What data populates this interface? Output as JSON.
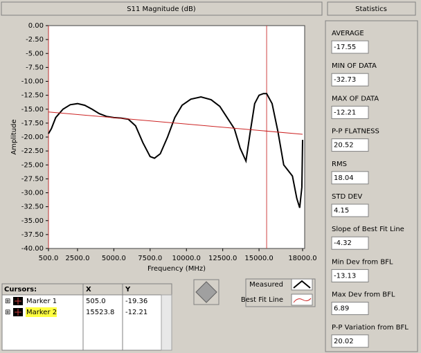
{
  "chart_data": {
    "type": "line",
    "title": "S11 Magnitude (dB)",
    "x_label": "Frequency (MHz)",
    "y_label": "Amplitude",
    "xlim": [
      500,
      18000
    ],
    "ylim": [
      -40,
      0
    ],
    "grid": false,
    "xticks": [
      {
        "value": 500,
        "label": "500.0"
      },
      {
        "value": 2500,
        "label": "2500.0"
      },
      {
        "value": 5000,
        "label": "5000.0"
      },
      {
        "value": 7500,
        "label": "7500.0"
      },
      {
        "value": 10000,
        "label": "10000.0"
      },
      {
        "value": 12500,
        "label": "12500.0"
      },
      {
        "value": 15000,
        "label": "15000.0"
      },
      {
        "value": 18000,
        "label": "18000.0"
      }
    ],
    "yticks": [
      {
        "value": 0,
        "label": "0.00"
      },
      {
        "value": -2.5,
        "label": "-2.50"
      },
      {
        "value": -5,
        "label": "-5.00"
      },
      {
        "value": -7.5,
        "label": "-7.50"
      },
      {
        "value": -10,
        "label": "-10.00"
      },
      {
        "value": -12.5,
        "label": "-12.50"
      },
      {
        "value": -15,
        "label": "-15.00"
      },
      {
        "value": -17.5,
        "label": "-17.50"
      },
      {
        "value": -20,
        "label": "-20.00"
      },
      {
        "value": -22.5,
        "label": "-22.50"
      },
      {
        "value": -25,
        "label": "-25.00"
      },
      {
        "value": -27.5,
        "label": "-27.50"
      },
      {
        "value": -30,
        "label": "-30.00"
      },
      {
        "value": -32.5,
        "label": "-32.50"
      },
      {
        "value": -35,
        "label": "-35.00"
      },
      {
        "value": -37.5,
        "label": "-37.50"
      },
      {
        "value": -40,
        "label": "-40.00"
      }
    ],
    "series": [
      {
        "name": "Measured",
        "color": "#000000",
        "x": [
          500,
          700,
          1000,
          1500,
          2000,
          2500,
          3000,
          3500,
          4000,
          4500,
          5000,
          5500,
          6000,
          6500,
          7000,
          7500,
          7800,
          8200,
          8700,
          9200,
          9700,
          10300,
          11000,
          11700,
          12300,
          12800,
          13300,
          13700,
          14100,
          14400,
          14700,
          15000,
          15300,
          15524,
          15900,
          16300,
          16700,
          17000,
          17300,
          17600,
          17800,
          17950,
          18000
        ],
        "values": [
          -19.4,
          -18.5,
          -16.5,
          -15,
          -14.2,
          -14,
          -14.3,
          -15,
          -15.8,
          -16.3,
          -16.5,
          -16.6,
          -16.8,
          -18,
          -21,
          -23.5,
          -23.8,
          -23,
          -20,
          -16.5,
          -14.3,
          -13.2,
          -12.8,
          -13.3,
          -14.5,
          -16.5,
          -18.5,
          -22,
          -24.3,
          -19,
          -14,
          -12.5,
          -12.2,
          -12.21,
          -14,
          -19,
          -25,
          -26,
          -27,
          -31,
          -32.7,
          -29,
          -20.5
        ]
      },
      {
        "name": "Best Fit Line",
        "color": "#cc2222",
        "x": [
          500,
          18000
        ],
        "values": [
          -15.5,
          -19.5
        ]
      }
    ]
  },
  "cursors": {
    "title": "Cursors:",
    "columns": [
      "X",
      "Y"
    ],
    "rows": [
      {
        "name": "Marker 1",
        "x": "505.0",
        "y": "-19.36"
      },
      {
        "name": "Marker 2",
        "x": "15523.8",
        "y": "-12.21"
      }
    ]
  },
  "statistics": {
    "title": "Statistics",
    "items": [
      {
        "label": "AVERAGE",
        "value": "-17.55"
      },
      {
        "label": "MIN OF DATA",
        "value": "-32.73"
      },
      {
        "label": "MAX OF DATA",
        "value": "-12.21"
      },
      {
        "label": "P-P FLATNESS",
        "value": "20.52"
      },
      {
        "label": "RMS",
        "value": "18.04"
      },
      {
        "label": "STD DEV",
        "value": "4.15"
      },
      {
        "label": "Slope of Best Fit Line",
        "value": "-4.32"
      },
      {
        "label": "Min Dev from BFL",
        "value": "-13.13"
      },
      {
        "label": "Max Dev from BFL",
        "value": "6.89"
      },
      {
        "label": "P-P Variation from BFL",
        "value": "20.02"
      }
    ]
  }
}
